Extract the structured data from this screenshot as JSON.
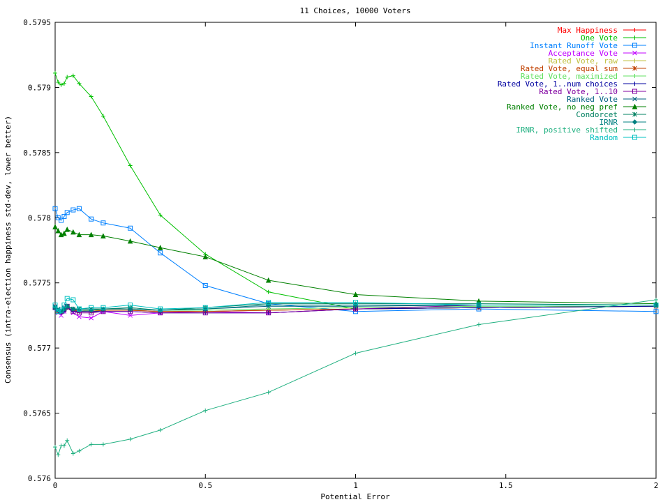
{
  "chart_data": {
    "type": "line",
    "title": "11 Choices, 10000 Voters",
    "xlabel": "Potential Error",
    "ylabel": "Consensus (intra-election happiness std-dev, lower better)",
    "xlim": [
      0,
      2
    ],
    "ylim": [
      0.576,
      0.5795
    ],
    "x_ticks": [
      0,
      0.5,
      1,
      1.5,
      2
    ],
    "x_tick_labels": [
      "0",
      "0.5",
      "1",
      "1.5",
      "2"
    ],
    "y_ticks": [
      0.576,
      0.5765,
      0.577,
      0.5775,
      0.578,
      0.5785,
      0.579,
      0.5795
    ],
    "y_tick_labels": [
      "0.576",
      "0.5765",
      "0.577",
      "0.5775",
      "0.578",
      "0.5785",
      "0.579",
      "0.5795"
    ],
    "legend_position": "top-right",
    "grid": false,
    "x": [
      0,
      0.01,
      0.02,
      0.03,
      0.04,
      0.06,
      0.08,
      0.12,
      0.16,
      0.25,
      0.35,
      0.5,
      0.71,
      1,
      1.41,
      2
    ],
    "series": [
      {
        "name": "Max Happiness",
        "color": "#ff0000",
        "marker": "plus",
        "values": [
          0.57731,
          0.57728,
          0.57728,
          0.5773,
          0.57731,
          0.57729,
          0.57729,
          0.57729,
          0.57729,
          0.57729,
          0.57728,
          0.57728,
          0.57729,
          0.5773,
          0.57731,
          0.57732
        ]
      },
      {
        "name": "One Vote",
        "color": "#00c000",
        "marker": "plus",
        "values": [
          0.57911,
          0.57904,
          0.57902,
          0.57903,
          0.57908,
          0.57909,
          0.57903,
          0.57893,
          0.57878,
          0.5784,
          0.57802,
          0.57772,
          0.57743,
          0.5773,
          0.57731,
          0.57732
        ]
      },
      {
        "name": "Instant Runoff Vote",
        "color": "#0080ff",
        "marker": "square",
        "values": [
          0.57807,
          0.578,
          0.57798,
          0.57801,
          0.57804,
          0.57806,
          0.57807,
          0.57799,
          0.57796,
          0.57792,
          0.57773,
          0.57748,
          0.57734,
          0.57728,
          0.5773,
          0.57728
        ]
      },
      {
        "name": "Acceptance Vote",
        "color": "#c000ff",
        "marker": "x",
        "values": [
          0.57732,
          0.57727,
          0.57725,
          0.57728,
          0.57731,
          0.57727,
          0.57724,
          0.57723,
          0.57728,
          0.57725,
          0.57727,
          0.57728,
          0.57727,
          0.5773,
          0.57731,
          0.57732
        ]
      },
      {
        "name": "Rated Vote, raw",
        "color": "#c0c040",
        "marker": "plus",
        "values": [
          0.57731,
          0.57728,
          0.57727,
          0.57729,
          0.57731,
          0.57729,
          0.57728,
          0.57729,
          0.57729,
          0.57729,
          0.57728,
          0.57728,
          0.57729,
          0.5773,
          0.57731,
          0.57732
        ]
      },
      {
        "name": "Rated Vote, equal sum",
        "color": "#c04000",
        "marker": "star",
        "values": [
          0.57731,
          0.57728,
          0.57728,
          0.57729,
          0.57731,
          0.57729,
          0.57728,
          0.57728,
          0.57729,
          0.57729,
          0.57728,
          0.57728,
          0.57729,
          0.5773,
          0.57731,
          0.57732
        ]
      },
      {
        "name": "Rated Vote, maximized",
        "color": "#60e060",
        "marker": "plus",
        "values": [
          0.5773,
          0.57729,
          0.57728,
          0.5773,
          0.57732,
          0.5773,
          0.57729,
          0.57729,
          0.5773,
          0.5773,
          0.57729,
          0.57729,
          0.5773,
          0.57731,
          0.57732,
          0.57732
        ]
      },
      {
        "name": "Rated Vote, 1..num choices",
        "color": "#0000a0",
        "marker": "plus",
        "values": [
          0.5773,
          0.57728,
          0.57727,
          0.57728,
          0.57731,
          0.57728,
          0.57728,
          0.57728,
          0.57728,
          0.57728,
          0.57727,
          0.57727,
          0.57727,
          0.5773,
          0.57731,
          0.57732
        ]
      },
      {
        "name": "Rated Vote, 1..10",
        "color": "#8000a0",
        "marker": "square",
        "values": [
          0.57731,
          0.57728,
          0.57728,
          0.5773,
          0.57732,
          0.57728,
          0.57727,
          0.57727,
          0.57728,
          0.57728,
          0.57727,
          0.57727,
          0.57727,
          0.5773,
          0.57733,
          0.57733
        ]
      },
      {
        "name": "Ranked Vote",
        "color": "#006080",
        "marker": "x",
        "values": [
          0.57732,
          0.5773,
          0.57729,
          0.57731,
          0.57732,
          0.5773,
          0.5773,
          0.5773,
          0.5773,
          0.5773,
          0.57729,
          0.5773,
          0.57732,
          0.57732,
          0.57733,
          0.57733
        ]
      },
      {
        "name": "Ranked Vote, no neg pref",
        "color": "#008000",
        "marker": "triangle",
        "values": [
          0.57793,
          0.5779,
          0.57787,
          0.57788,
          0.57791,
          0.57789,
          0.57787,
          0.57787,
          0.57786,
          0.57782,
          0.57777,
          0.5777,
          0.57752,
          0.57741,
          0.57736,
          0.57734
        ]
      },
      {
        "name": "Condorcet",
        "color": "#008060",
        "marker": "star",
        "values": [
          0.57731,
          0.57729,
          0.57728,
          0.5773,
          0.57732,
          0.5773,
          0.5773,
          0.5773,
          0.5773,
          0.57731,
          0.57729,
          0.57731,
          0.57734,
          0.57734,
          0.57734,
          0.57733
        ]
      },
      {
        "name": "IRNR",
        "color": "#008080",
        "marker": "diamond",
        "values": [
          0.57731,
          0.57729,
          0.57728,
          0.5773,
          0.57732,
          0.5773,
          0.57729,
          0.57729,
          0.5773,
          0.5773,
          0.57729,
          0.5773,
          0.57733,
          0.57733,
          0.57733,
          0.57733
        ]
      },
      {
        "name": "IRNR, positive shifted",
        "color": "#20b080",
        "marker": "plus",
        "values": [
          0.57624,
          0.57618,
          0.57625,
          0.57625,
          0.57629,
          0.57619,
          0.57621,
          0.57626,
          0.57626,
          0.5763,
          0.57637,
          0.57652,
          0.57666,
          0.57696,
          0.57718,
          0.57737
        ]
      },
      {
        "name": "Random",
        "color": "#00c0c0",
        "marker": "square",
        "values": [
          0.57733,
          0.57728,
          0.57729,
          0.57733,
          0.57738,
          0.57737,
          0.5773,
          0.57731,
          0.57731,
          0.57733,
          0.5773,
          0.57731,
          0.57735,
          0.57735,
          0.57733,
          0.57733
        ]
      }
    ]
  }
}
